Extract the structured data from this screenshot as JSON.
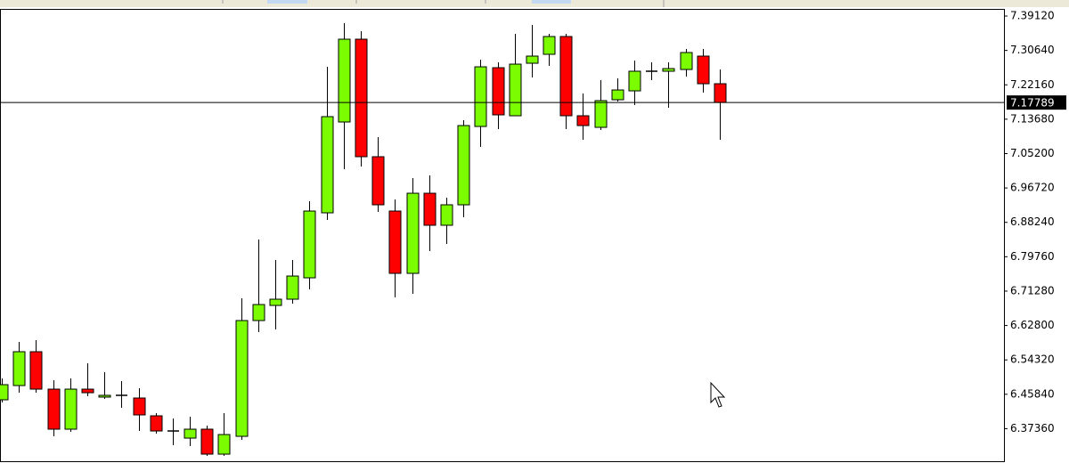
{
  "chart_data": {
    "type": "candlestick",
    "up_color": "#7cfc00",
    "down_color": "#ff0000",
    "outline_color": "#000000",
    "grid": false,
    "ylim": [
      6.2933,
      7.4088
    ],
    "yticks": [
      {
        "value": 7.3912,
        "label": "7.39120"
      },
      {
        "value": 7.3064,
        "label": "7.30640"
      },
      {
        "value": 7.2216,
        "label": "7.22160"
      },
      {
        "value": 7.1368,
        "label": "7.13680"
      },
      {
        "value": 7.052,
        "label": "7.05200"
      },
      {
        "value": 6.9672,
        "label": "6.96720"
      },
      {
        "value": 6.8824,
        "label": "6.88240"
      },
      {
        "value": 6.7976,
        "label": "6.79760"
      },
      {
        "value": 6.7128,
        "label": "6.71280"
      },
      {
        "value": 6.628,
        "label": "6.62800"
      },
      {
        "value": 6.5432,
        "label": "6.54320"
      },
      {
        "value": 6.4584,
        "label": "6.45840"
      },
      {
        "value": 6.3736,
        "label": "6.37360"
      }
    ],
    "current_price": 7.17789,
    "open": [
      6.4448,
      6.4799,
      6.5634,
      6.4711,
      6.3723,
      6.4711,
      6.4514,
      6.4558,
      6.4492,
      6.4053,
      6.3679,
      6.3503,
      6.3723,
      6.3108,
      6.3547,
      6.6402,
      6.6775,
      6.6929,
      6.7456,
      6.9059,
      7.1299,
      7.3341,
      7.0443,
      6.9103,
      6.7566,
      6.9542,
      6.8752,
      6.9257,
      7.1189,
      7.2638,
      7.1453,
      7.2748,
      7.2968,
      7.3407,
      7.1453,
      7.1167,
      7.1848,
      7.2067,
      7.2551,
      7.2551,
      7.2594,
      7.2924,
      7.2243
    ],
    "high": [
      6.4975,
      6.5875,
      6.5919,
      6.4931,
      6.4975,
      6.5348,
      6.5128,
      6.4909,
      6.4733,
      6.4118,
      6.3987,
      6.4031,
      6.3811,
      6.4118,
      6.6951,
      6.84,
      6.7895,
      6.7895,
      6.9345,
      7.266,
      7.3736,
      7.3539,
      7.0926,
      6.9388,
      6.9916,
      6.9981,
      6.9432,
      7.1343,
      7.2836,
      7.277,
      7.3473,
      7.3692,
      7.3473,
      7.3473,
      7.2002,
      7.2331,
      7.2375,
      7.2814,
      7.277,
      7.277,
      7.3099,
      7.3099,
      7.2594
    ],
    "low": [
      6.4382,
      6.4623,
      6.4623,
      6.3547,
      6.3657,
      6.4536,
      6.447,
      6.425,
      6.3679,
      6.3613,
      6.3328,
      6.3306,
      6.3064,
      6.3064,
      6.3459,
      6.6116,
      6.6182,
      6.6819,
      6.7171,
      6.8883,
      7.0135,
      7.0201,
      6.9081,
      6.6973,
      6.7061,
      6.8115,
      6.829,
      6.8949,
      7.0684,
      7.1123,
      7.1453,
      7.2397,
      7.2682,
      7.1123,
      7.086,
      7.1101,
      7.1804,
      7.1716,
      7.2331,
      7.165,
      7.2419,
      7.2024,
      7.086
    ],
    "close": [
      6.4821,
      6.5634,
      6.4711,
      6.3723,
      6.4711,
      6.4623,
      6.4558,
      6.4558,
      6.4075,
      6.3679,
      6.3679,
      6.3723,
      6.3108,
      6.3591,
      6.6402,
      6.6797,
      6.6929,
      6.75,
      6.9103,
      7.1431,
      7.3341,
      7.0443,
      6.9257,
      6.7566,
      6.9542,
      6.8752,
      6.9257,
      7.1211,
      7.266,
      7.1475,
      7.2726,
      7.2924,
      7.3407,
      7.1453,
      7.1211,
      7.1826,
      7.2089,
      7.2551,
      7.2551,
      7.2616,
      7.3012,
      7.2243,
      7.1782
    ]
  }
}
